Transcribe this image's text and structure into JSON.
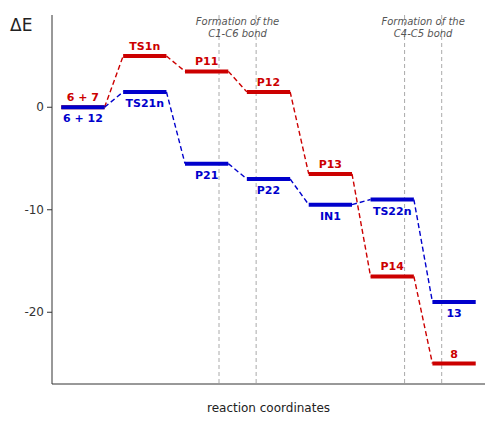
{
  "chart_data": {
    "type": "energy_profile",
    "ylabel": "ΔE",
    "xlabel": "reaction coordinates",
    "ylim": [
      -27,
      9
    ],
    "yticks": [
      0,
      -10,
      -20
    ],
    "annotations": [
      "Formation of the\nC1-C6 bond",
      "Formation of the\nC4-C5 bond"
    ],
    "series": [
      {
        "color": "#cc0000",
        "categories": [
          "6 + 7",
          "TS1n",
          "P11",
          "P12",
          "P13",
          "P14",
          "8"
        ],
        "values": [
          0.0,
          5.0,
          3.5,
          1.5,
          -6.5,
          -16.5,
          -25.0
        ]
      },
      {
        "color": "#0000cc",
        "categories": [
          "6 + 12",
          "TS21n",
          "P21",
          "P22",
          "IN1",
          "TS22n",
          "13"
        ],
        "values": [
          0.0,
          1.5,
          -5.5,
          -7.0,
          -9.5,
          -9.0,
          -19.0
        ]
      }
    ]
  }
}
